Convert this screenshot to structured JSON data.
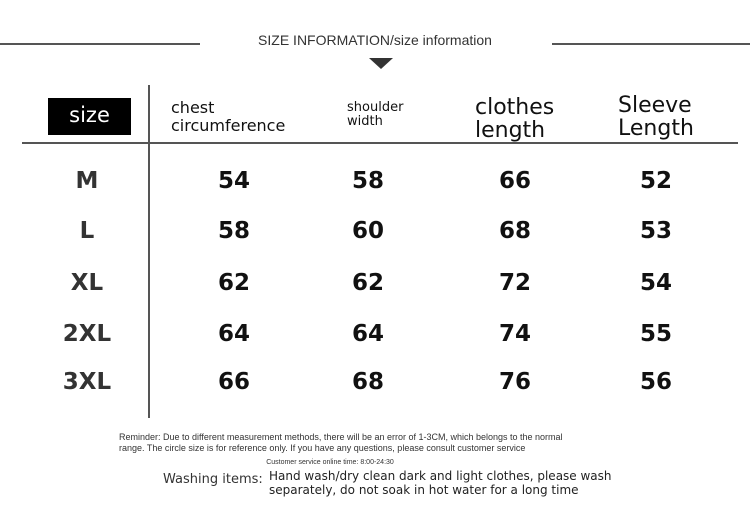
{
  "title": "SIZE INFORMATION/size information",
  "headers": {
    "size": "size",
    "chest": [
      "chest",
      "circumference"
    ],
    "shoulder": [
      "shoulder",
      "width"
    ],
    "length": [
      "clothes",
      "length"
    ],
    "sleeve": [
      "Sleeve",
      "Length"
    ]
  },
  "rows": [
    {
      "size": "M",
      "chest": "54",
      "shoulder": "58",
      "length": "66",
      "sleeve": "52"
    },
    {
      "size": "L",
      "chest": "58",
      "shoulder": "60",
      "length": "68",
      "sleeve": "53"
    },
    {
      "size": "XL",
      "chest": "62",
      "shoulder": "62",
      "length": "72",
      "sleeve": "54"
    },
    {
      "size": "2XL",
      "chest": "64",
      "shoulder": "64",
      "length": "74",
      "sleeve": "55"
    },
    {
      "size": "3XL",
      "chest": "66",
      "shoulder": "68",
      "length": "76",
      "sleeve": "56"
    }
  ],
  "reminder": [
    "Reminder: Due to different measurement methods, there will be an error of 1-3CM, which belongs to the normal",
    "range. The circle size is for reference only. If you have any questions, please consult customer service"
  ],
  "service_time": "Customer service online time: 8:00-24:30",
  "washing": {
    "label": "Washing items:",
    "text": [
      "Hand wash/dry clean dark and light clothes, please wash",
      "separately, do not soak in hot water for a long time"
    ]
  }
}
